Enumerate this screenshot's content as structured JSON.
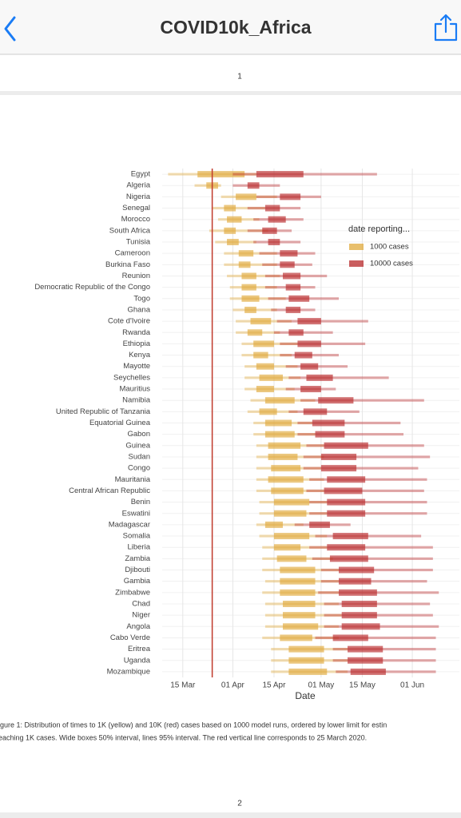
{
  "header": {
    "title": "COVID10k_Africa"
  },
  "pages": {
    "top_number": "1",
    "bottom_number": "2"
  },
  "caption": [
    "igure 1: Distribution of times to 1K (yellow) and 10K (red) cases based on 1000 model runs, ordered by lower limit for estin",
    "eaching 1K cases. Wide boxes 50% interval, lines 95% interval. The red vertical line corresponds to 25 March 2020."
  ],
  "chart_data": {
    "type": "range",
    "x_label": "Date",
    "legend_title": "date reporting...",
    "legend_position": "right",
    "grid": true,
    "reference_line": {
      "value": 85,
      "color": "#c0392b"
    },
    "xlim": [
      68,
      169
    ],
    "xticks": [
      {
        "value": 75,
        "label": "15 Mar"
      },
      {
        "value": 92,
        "label": "01 Apr"
      },
      {
        "value": 106,
        "label": "15 Apr"
      },
      {
        "value": 122,
        "label": "01 May"
      },
      {
        "value": 136,
        "label": "15 May"
      },
      {
        "value": 153,
        "label": "01 Jun"
      }
    ],
    "categories": [
      "Egypt",
      "Algeria",
      "Nigeria",
      "Senegal",
      "Morocco",
      "South Africa",
      "Tunisia",
      "Cameroon",
      "Burkina Faso",
      "Reunion",
      "Democratic Republic of the Congo",
      "Togo",
      "Ghana",
      "Cote d'Ivoire",
      "Rwanda",
      "Ethiopia",
      "Kenya",
      "Mayotte",
      "Seychelles",
      "Mauritius",
      "Namibia",
      "United Republic of Tanzania",
      "Equatorial Guinea",
      "Gabon",
      "Guinea",
      "Sudan",
      "Congo",
      "Mauritania",
      "Central African Republic",
      "Benin",
      "Eswatini",
      "Madagascar",
      "Somalia",
      "Liberia",
      "Zambia",
      "Djibouti",
      "Gambia",
      "Zimbabwe",
      "Chad",
      "Niger",
      "Angola",
      "Cabo Verde",
      "Eritrea",
      "Uganda",
      "Mozambique"
    ],
    "series": [
      {
        "name": "1000 cases",
        "color": "#e0a93b",
        "line_low": [
          70,
          79,
          88,
          85,
          87,
          84,
          86,
          89,
          89,
          90,
          91,
          91,
          92,
          93,
          93,
          95,
          95,
          96,
          96,
          96,
          98,
          97,
          99,
          99,
          100,
          100,
          100,
          100,
          100,
          101,
          101,
          100,
          101,
          102,
          102,
          102,
          103,
          102,
          103,
          103,
          103,
          102,
          105,
          105,
          105
        ],
        "box_low": [
          80,
          83,
          93,
          89,
          90,
          89,
          90,
          94,
          94,
          95,
          95,
          95,
          96,
          98,
          97,
          99,
          99,
          100,
          101,
          100,
          103,
          101,
          103,
          103,
          104,
          104,
          105,
          104,
          105,
          106,
          106,
          103,
          106,
          106,
          107,
          108,
          108,
          108,
          109,
          109,
          109,
          108,
          111,
          111,
          111
        ],
        "box_high": [
          96,
          87,
          100,
          93,
          95,
          93,
          94,
          99,
          98,
          100,
          100,
          101,
          100,
          105,
          102,
          106,
          104,
          106,
          109,
          106,
          113,
          107,
          112,
          113,
          115,
          114,
          115,
          116,
          116,
          118,
          117,
          109,
          118,
          115,
          117,
          120,
          120,
          120,
          120,
          120,
          121,
          119,
          123,
          123,
          124
        ],
        "line_high": [
          100,
          88,
          107,
          103,
          101,
          104,
          100,
          107,
          107,
          108,
          107,
          110,
          107,
          112,
          108,
          114,
          112,
          114,
          115,
          113,
          120,
          114,
          119,
          120,
          123,
          123,
          122,
          123,
          123,
          124,
          124,
          116,
          124,
          124,
          126,
          128,
          128,
          128,
          128,
          129,
          128,
          128,
          131,
          131,
          131
        ]
      },
      {
        "name": "10000 cases",
        "color": "#b8282a",
        "line_low": [
          92,
          92,
          100,
          97,
          99,
          97,
          99,
          101,
          102,
          103,
          103,
          104,
          105,
          107,
          106,
          108,
          108,
          110,
          111,
          110,
          115,
          111,
          114,
          114,
          117,
          116,
          116,
          118,
          117,
          118,
          118,
          113,
          120,
          118,
          119,
          122,
          122,
          121,
          123,
          123,
          123,
          120,
          126,
          126,
          127
        ],
        "box_low": [
          100,
          97,
          108,
          103,
          104,
          102,
          104,
          108,
          108,
          109,
          110,
          111,
          110,
          114,
          111,
          114,
          113,
          115,
          117,
          115,
          121,
          116,
          119,
          120,
          123,
          122,
          122,
          124,
          123,
          124,
          124,
          118,
          126,
          124,
          125,
          128,
          128,
          128,
          129,
          129,
          129,
          126,
          131,
          131,
          132
        ],
        "box_high": [
          116,
          101,
          115,
          108,
          110,
          107,
          108,
          114,
          113,
          115,
          115,
          118,
          115,
          122,
          116,
          122,
          119,
          121,
          126,
          122,
          133,
          124,
          130,
          130,
          138,
          134,
          134,
          137,
          136,
          137,
          137,
          125,
          138,
          137,
          138,
          140,
          139,
          141,
          141,
          141,
          142,
          138,
          143,
          143,
          144
        ],
        "line_high": [
          141,
          108,
          122,
          115,
          116,
          112,
          115,
          120,
          119,
          124,
          120,
          128,
          120,
          138,
          126,
          137,
          128,
          131,
          145,
          127,
          157,
          135,
          149,
          150,
          157,
          159,
          155,
          158,
          157,
          158,
          158,
          132,
          156,
          160,
          160,
          160,
          158,
          162,
          159,
          160,
          162,
          161,
          161,
          161,
          161
        ]
      }
    ]
  }
}
